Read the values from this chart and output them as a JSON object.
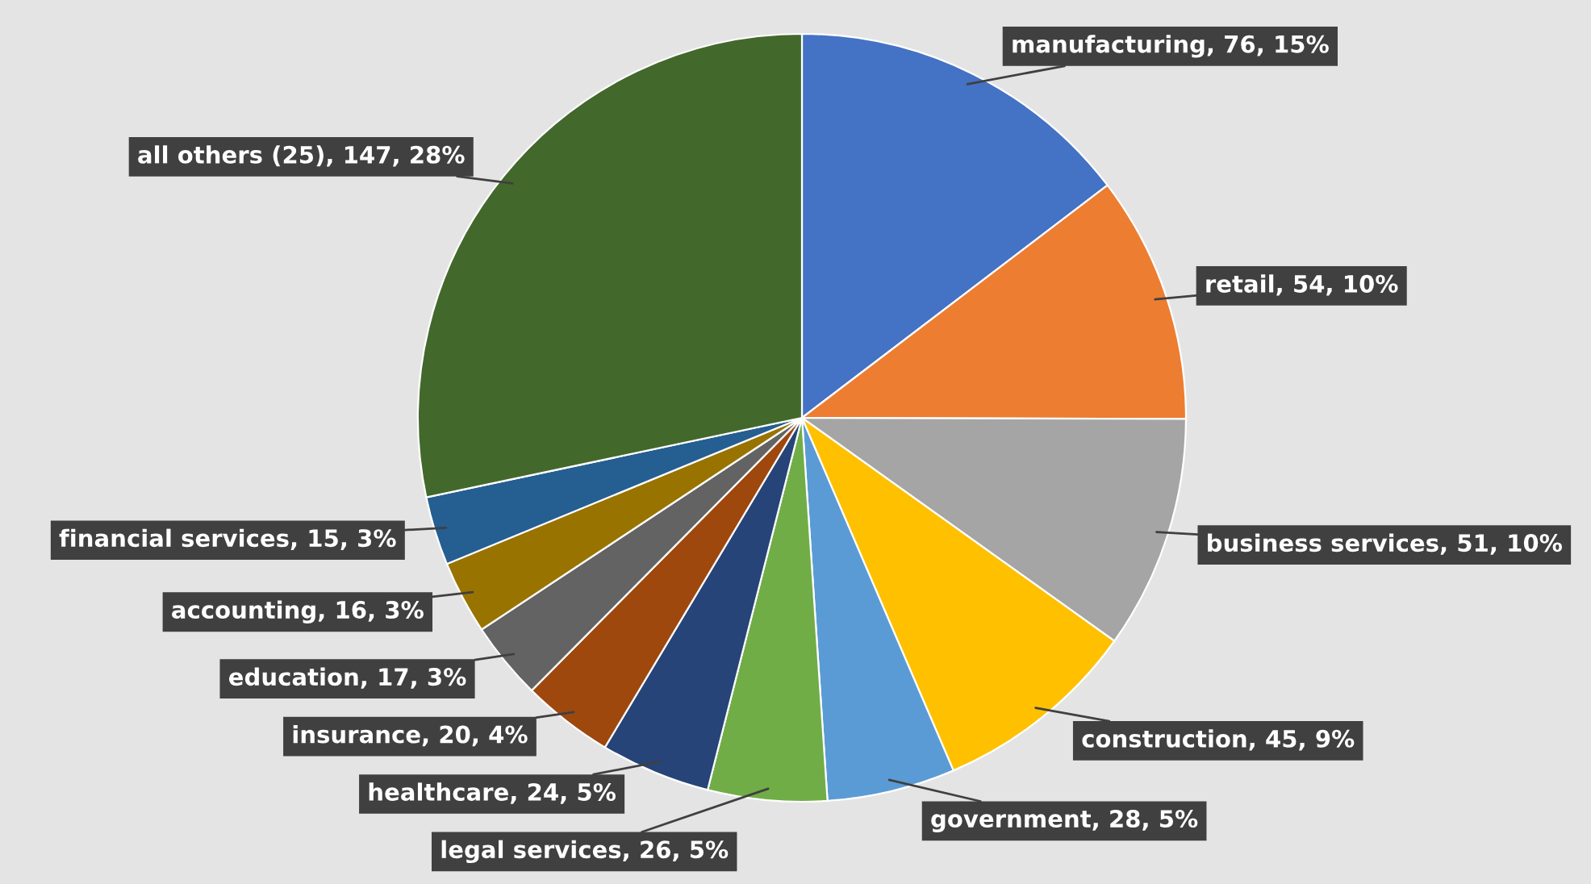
{
  "chart_data": {
    "type": "pie",
    "categories": [
      "manufacturing",
      "retail",
      "business services",
      "construction",
      "government",
      "legal services",
      "healthcare",
      "insurance",
      "education",
      "accounting",
      "financial services",
      "all others (25)"
    ],
    "values": [
      76,
      54,
      51,
      45,
      28,
      26,
      24,
      20,
      17,
      16,
      15,
      147
    ],
    "value_labels": [
      "76, 15%",
      "54, 10%",
      "51, 10%",
      "45, 9%",
      "28, 5%",
      "26, 5%",
      "24, 5%",
      "20, 4%",
      "17, 3%",
      "16, 3%",
      "15, 3%",
      "147, 28%"
    ],
    "colors": [
      "#4472c4",
      "#ed7d31",
      "#a5a5a5",
      "#ffc000",
      "#5b9bd5",
      "#70ad47",
      "#264478",
      "#9e480e",
      "#636363",
      "#997300",
      "#255e91",
      "#43682b"
    ],
    "legend": false
  }
}
